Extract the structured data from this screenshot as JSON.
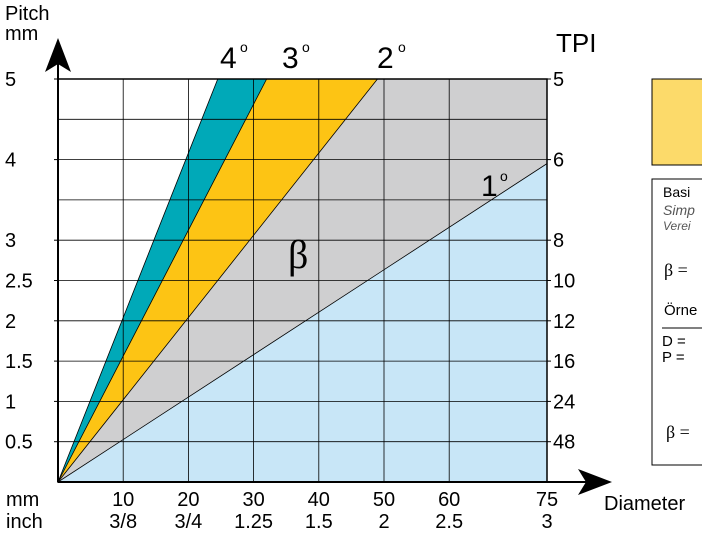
{
  "chart_data": {
    "type": "area",
    "y_axis_title_line1": "Pitch",
    "y_axis_title_line2": "mm",
    "right_axis_title": "TPI",
    "x_axis_title": "Diameter",
    "x_unit_mm": "mm",
    "x_unit_inch": "inch",
    "x_range_mm": [
      0,
      75
    ],
    "y_range_mm": [
      0,
      5
    ],
    "x_ticks_mm": [
      "10",
      "20",
      "30",
      "40",
      "50",
      "60",
      "75"
    ],
    "x_ticks_inch": [
      "3/8",
      "3/4",
      "1.25",
      "1.5",
      "2",
      "2.5",
      "3"
    ],
    "y_ticks_mm": [
      "5",
      "4",
      "3",
      "2.5",
      "2",
      "1.5",
      "1",
      "0.5"
    ],
    "y_tick_values": [
      5,
      4,
      3,
      2.5,
      2,
      1.5,
      1,
      0.5
    ],
    "tpi_ticks": [
      "5",
      "6",
      "8",
      "10",
      "12",
      "16",
      "24",
      "48"
    ],
    "region_label": "β",
    "series": [
      {
        "name": "1°",
        "label_main": "1",
        "x": [
          0,
          75
        ],
        "y": [
          0,
          3.95
        ],
        "color": "#c8e6f7"
      },
      {
        "name": "2°",
        "label_main": "2",
        "x": [
          0,
          49
        ],
        "y": [
          0,
          5
        ],
        "color": "#cfcfd0"
      },
      {
        "name": "3°",
        "label_main": "3",
        "x": [
          0,
          32
        ],
        "y": [
          0,
          5
        ],
        "color": "#fdc414"
      },
      {
        "name": "4°",
        "label_main": "4",
        "x": [
          0,
          24.5
        ],
        "y": [
          0,
          5
        ],
        "color": "#00a9b8"
      }
    ],
    "degree_symbol": "o",
    "grid": true
  },
  "legend_panel": {
    "swatch_color": "#fcda6a",
    "basis_text": "Basi",
    "simp_text": "Simp",
    "verei_text": "Verei",
    "beta_eq_1": "β =",
    "ornek_text": "Örne",
    "d_eq": "D =",
    "p_eq": "P =",
    "beta_eq_2": "β ="
  }
}
